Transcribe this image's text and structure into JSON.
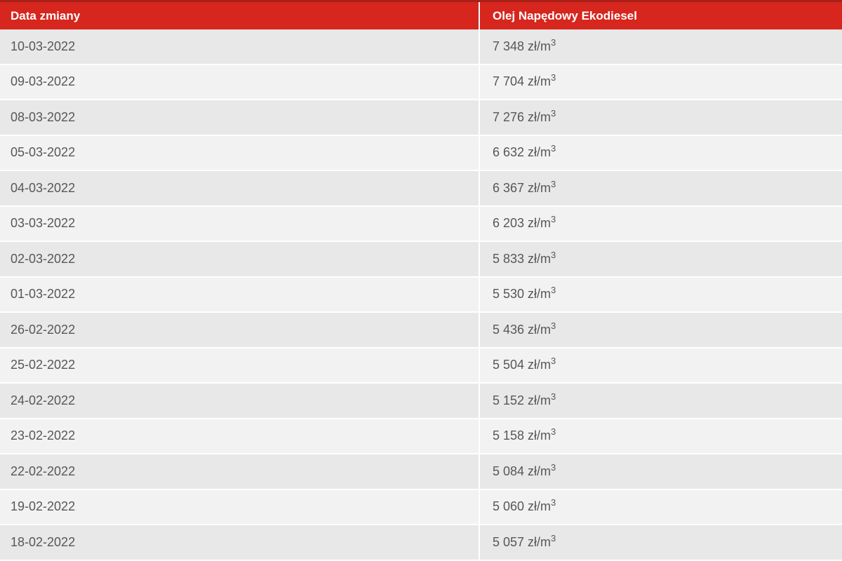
{
  "header": {
    "col_date": "Data zmiany",
    "col_price": "Olej Napędowy Ekodiesel"
  },
  "unit": {
    "text": "zł/m",
    "superscript": "3"
  },
  "rows": [
    {
      "date": "10-03-2022",
      "price": "7 348"
    },
    {
      "date": "09-03-2022",
      "price": "7 704"
    },
    {
      "date": "08-03-2022",
      "price": "7 276"
    },
    {
      "date": "05-03-2022",
      "price": "6 632"
    },
    {
      "date": "04-03-2022",
      "price": "6 367"
    },
    {
      "date": "03-03-2022",
      "price": "6 203"
    },
    {
      "date": "02-03-2022",
      "price": "5 833"
    },
    {
      "date": "01-03-2022",
      "price": "5 530"
    },
    {
      "date": "26-02-2022",
      "price": "5 436"
    },
    {
      "date": "25-02-2022",
      "price": "5 504"
    },
    {
      "date": "24-02-2022",
      "price": "5 152"
    },
    {
      "date": "23-02-2022",
      "price": "5 158"
    },
    {
      "date": "22-02-2022",
      "price": "5 084"
    },
    {
      "date": "19-02-2022",
      "price": "5 060"
    },
    {
      "date": "18-02-2022",
      "price": "5 057"
    }
  ],
  "colors": {
    "header_bg": "#d6261e",
    "header_top_border": "#a92019",
    "header_text": "#ffffff",
    "row_odd_bg": "#e8e8e8",
    "row_even_bg": "#f2f2f2",
    "cell_text": "#56575a",
    "divider": "#ffffff"
  }
}
